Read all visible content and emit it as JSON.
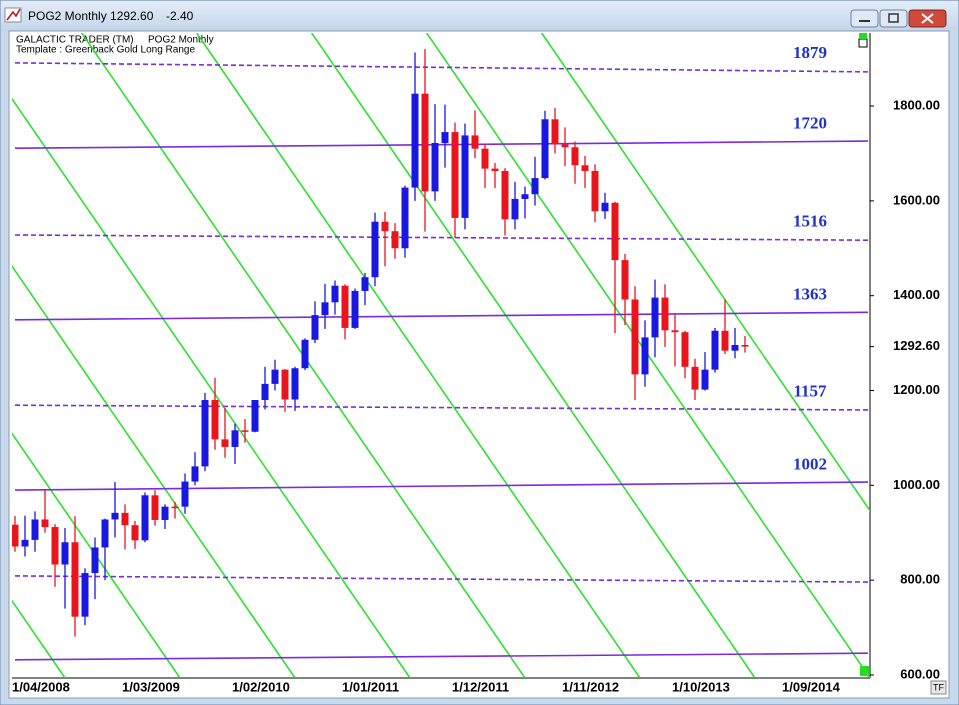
{
  "window": {
    "title": "POG2 Monthly 1292.60",
    "change": "-2.40",
    "header": "GALACTIC TRADER (TM)",
    "header_symbol": "POG2 Monthly",
    "template": "Template : Greenback Gold Long Range",
    "tf_button": "TF"
  },
  "chart_data": {
    "type": "candlestick",
    "up_color": "#1818e0",
    "down_color": "#e8161c",
    "level_color": "#7c2ae0",
    "level_label_color": "#2030c8",
    "fan_color": "#2ee02e",
    "ylim": [
      600,
      1954
    ],
    "yticks": [
      {
        "value": 600,
        "label": "600.00"
      },
      {
        "value": 800,
        "label": "800.00"
      },
      {
        "value": 1000,
        "label": "1000.00"
      },
      {
        "value": 1200,
        "label": "1200.00"
      },
      {
        "value": 1400,
        "label": "1400.00"
      },
      {
        "value": 1600,
        "label": "1600.00"
      },
      {
        "value": 1800,
        "label": "1800.00"
      }
    ],
    "last_price": {
      "value": 1292.6,
      "label": "1292.60"
    },
    "categories": [
      "1/04/2008",
      null,
      null,
      null,
      null,
      null,
      null,
      null,
      null,
      null,
      null,
      "1/03/2009",
      null,
      null,
      null,
      null,
      null,
      null,
      null,
      null,
      null,
      null,
      "1/02/2010",
      null,
      null,
      null,
      null,
      null,
      null,
      null,
      null,
      null,
      null,
      "1/01/2011",
      null,
      null,
      null,
      null,
      null,
      null,
      null,
      null,
      null,
      null,
      "1/12/2011",
      null,
      null,
      null,
      null,
      null,
      null,
      null,
      null,
      null,
      null,
      "1/11/2012",
      null,
      null,
      null,
      null,
      null,
      null,
      null,
      null,
      null,
      null,
      "1/10/2013",
      null,
      null,
      null,
      null,
      null,
      null,
      null,
      null,
      null,
      null,
      "1/09/2014",
      null,
      null,
      null,
      null,
      null,
      null,
      null,
      null
    ],
    "open": [
      917,
      871,
      885,
      928,
      912,
      833,
      880,
      723,
      815,
      869,
      928,
      942,
      916,
      884,
      979,
      927,
      955,
      955,
      1008,
      1040,
      1180,
      1097,
      1081,
      1116,
      1113,
      1180,
      1214,
      1244,
      1181,
      1247,
      1307,
      1359,
      1386,
      1421,
      1332,
      1410,
      1439,
      1556,
      1536,
      1500,
      1628,
      1826,
      1620,
      1722,
      1745,
      1564,
      1738,
      1710,
      1668,
      1663,
      1561,
      1604,
      1614,
      1648,
      1772,
      1719,
      1713,
      1675,
      1663,
      1578,
      1596,
      1475,
      1392,
      1234,
      1312,
      1396,
      1327,
      1323,
      1250,
      1202,
      1244,
      1326,
      1284,
      1296,
      null,
      null,
      null,
      null,
      null,
      null,
      null,
      null,
      null,
      null,
      null,
      null
    ],
    "high": [
      935,
      936,
      945,
      990,
      918,
      910,
      935,
      825,
      890,
      930,
      1007,
      960,
      925,
      985,
      990,
      960,
      965,
      1025,
      1070,
      1195,
      1227,
      1163,
      1130,
      1140,
      1180,
      1250,
      1265,
      1245,
      1250,
      1310,
      1388,
      1425,
      1432,
      1424,
      1415,
      1448,
      1575,
      1577,
      1553,
      1632,
      1913,
      1920,
      1804,
      1803,
      1765,
      1763,
      1791,
      1720,
      1680,
      1669,
      1640,
      1630,
      1693,
      1790,
      1796,
      1755,
      1725,
      1695,
      1677,
      1617,
      1598,
      1488,
      1420,
      1348,
      1434,
      1424,
      1362,
      1326,
      1267,
      1281,
      1332,
      1392,
      1332,
      1315,
      null,
      null,
      null,
      null,
      null,
      null,
      null,
      null,
      null,
      null,
      null,
      null
    ],
    "low": [
      860,
      850,
      860,
      900,
      786,
      740,
      681,
      705,
      760,
      800,
      890,
      865,
      866,
      880,
      915,
      908,
      930,
      940,
      1000,
      1030,
      1075,
      1058,
      1045,
      1090,
      1112,
      1160,
      1200,
      1155,
      1157,
      1243,
      1300,
      1330,
      1360,
      1308,
      1330,
      1380,
      1420,
      1462,
      1478,
      1480,
      1600,
      1535,
      1600,
      1670,
      1522,
      1540,
      1690,
      1627,
      1627,
      1527,
      1540,
      1563,
      1590,
      1645,
      1700,
      1673,
      1636,
      1627,
      1555,
      1562,
      1321,
      1338,
      1180,
      1208,
      1270,
      1292,
      1251,
      1226,
      1180,
      1200,
      1238,
      1277,
      1268,
      1280,
      null,
      null,
      null,
      null,
      null,
      null,
      null,
      null,
      null,
      null,
      null,
      null
    ],
    "close": [
      871,
      885,
      928,
      912,
      833,
      880,
      723,
      815,
      869,
      928,
      942,
      916,
      884,
      979,
      927,
      955,
      953,
      1008,
      1040,
      1180,
      1097,
      1081,
      1116,
      1113,
      1180,
      1214,
      1244,
      1181,
      1247,
      1307,
      1359,
      1386,
      1421,
      1332,
      1410,
      1439,
      1556,
      1536,
      1500,
      1628,
      1826,
      1620,
      1722,
      1745,
      1564,
      1738,
      1710,
      1668,
      1663,
      1561,
      1604,
      1614,
      1648,
      1772,
      1719,
      1713,
      1675,
      1663,
      1578,
      1596,
      1475,
      1392,
      1234,
      1312,
      1396,
      1327,
      1323,
      1250,
      1202,
      1244,
      1326,
      1284,
      1296,
      1292.6,
      null,
      null,
      null,
      null,
      null,
      null,
      null,
      null,
      null,
      null,
      null,
      null
    ],
    "levels": [
      {
        "label": "1879",
        "style": "dashed",
        "values": [
          1891,
          1872
        ]
      },
      {
        "label": "1720",
        "style": "solid",
        "values": [
          1711,
          1726
        ]
      },
      {
        "label": "1516",
        "style": "dashed",
        "values": [
          1528,
          1517
        ]
      },
      {
        "label": "1363",
        "style": "solid",
        "values": [
          1349,
          1365
        ]
      },
      {
        "label": "1157",
        "style": "dashed",
        "values": [
          1169,
          1159
        ]
      },
      {
        "label": "1002",
        "style": "solid",
        "values": [
          990,
          1007
        ]
      },
      {
        "style": "dashed",
        "values": [
          809,
          796
        ]
      },
      {
        "style": "solid",
        "values": [
          632,
          646
        ]
      }
    ]
  }
}
